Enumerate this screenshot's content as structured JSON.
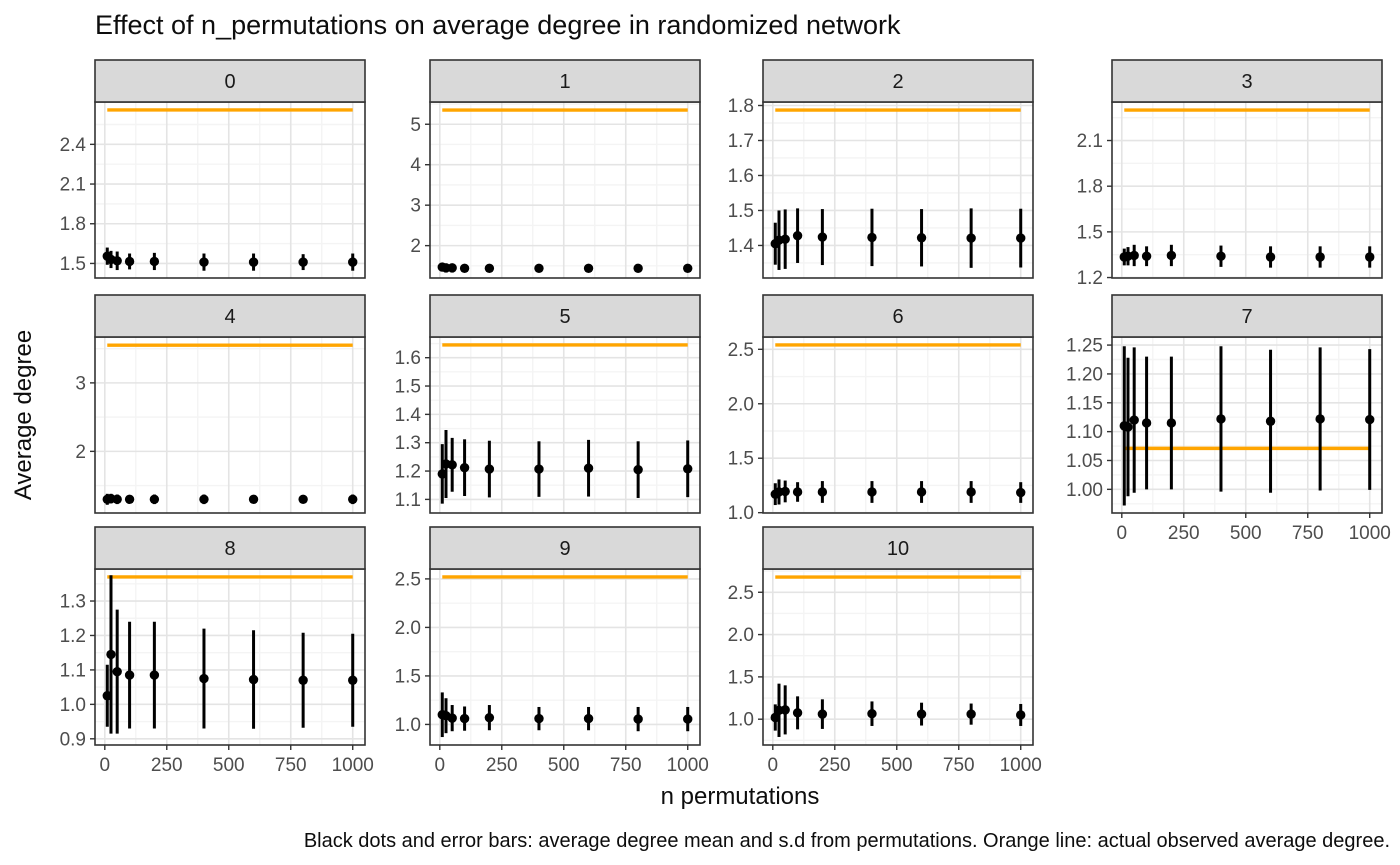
{
  "title": "Effect of n_permutations on average degree in randomized network",
  "caption": "Black dots and error bars: average degree mean and s.d from permutations. Orange line: actual observed average degree.",
  "xlabel": "n permutations",
  "ylabel": "Average degree",
  "colors": {
    "observed_line": "#FFA500",
    "point": "#000000",
    "strip_bg": "#D9D9D9",
    "border": "#333333",
    "grid_major": "#E4E4E4",
    "grid_minor": "#F4F4F4",
    "axis_text": "#4D4D4D",
    "strip_text": "#1A1A1A",
    "panel_bg": "#FFFFFF"
  },
  "chart_data": {
    "type": "scatter",
    "x": [
      10,
      25,
      50,
      100,
      200,
      400,
      600,
      800,
      1000
    ],
    "x_ticks": [
      0,
      250,
      500,
      750,
      1000
    ],
    "x_tick_labels": [
      "0",
      "250",
      "500",
      "750",
      "1000"
    ],
    "xlim": [
      -39.5,
      1049.5
    ],
    "observed_line_span": [
      10,
      1000
    ],
    "facets": [
      {
        "label": "0",
        "observed": 2.66,
        "ylim": [
          1.39,
          2.72
        ],
        "y_ticks": [
          1.5,
          1.8,
          2.1,
          2.4
        ],
        "y_tick_labels": [
          "1.5",
          "1.8",
          "2.1",
          "2.4"
        ],
        "mean": [
          1.555,
          1.53,
          1.52,
          1.515,
          1.515,
          1.51,
          1.51,
          1.51,
          1.51
        ],
        "sd": [
          0.065,
          0.065,
          0.07,
          0.06,
          0.065,
          0.065,
          0.065,
          0.06,
          0.065
        ]
      },
      {
        "label": "1",
        "observed": 5.35,
        "ylim": [
          1.2,
          5.55
        ],
        "y_ticks": [
          2,
          3,
          4,
          5
        ],
        "y_tick_labels": [
          "2",
          "3",
          "4",
          "5"
        ],
        "mean": [
          1.47,
          1.45,
          1.45,
          1.44,
          1.44,
          1.44,
          1.44,
          1.44,
          1.44
        ],
        "sd": [
          0.06,
          0.05,
          0.05,
          0.04,
          0.045,
          0.04,
          0.045,
          0.04,
          0.045
        ]
      },
      {
        "label": "2",
        "observed": 1.787,
        "ylim": [
          1.307,
          1.81
        ],
        "y_ticks": [
          1.4,
          1.5,
          1.6,
          1.7,
          1.8
        ],
        "y_tick_labels": [
          "1.4",
          "1.5",
          "1.6",
          "1.7",
          "1.8"
        ],
        "mean": [
          1.405,
          1.415,
          1.418,
          1.428,
          1.424,
          1.423,
          1.422,
          1.421,
          1.421
        ],
        "sd": [
          0.06,
          0.085,
          0.085,
          0.078,
          0.08,
          0.082,
          0.082,
          0.085,
          0.084
        ]
      },
      {
        "label": "3",
        "observed": 2.3,
        "ylim": [
          1.197,
          2.353
        ],
        "y_ticks": [
          1.2,
          1.5,
          1.8,
          2.1
        ],
        "y_tick_labels": [
          "1.2",
          "1.5",
          "1.8",
          "2.1"
        ],
        "mean": [
          1.335,
          1.34,
          1.345,
          1.34,
          1.345,
          1.34,
          1.335,
          1.335,
          1.335
        ],
        "sd": [
          0.055,
          0.06,
          0.07,
          0.065,
          0.07,
          0.07,
          0.07,
          0.07,
          0.07
        ]
      },
      {
        "label": "4",
        "observed": 3.55,
        "ylim": [
          1.1,
          3.67
        ],
        "y_ticks": [
          2,
          3
        ],
        "y_tick_labels": [
          "2",
          "3"
        ],
        "mean": [
          1.3,
          1.31,
          1.3,
          1.3,
          1.3,
          1.3,
          1.3,
          1.3,
          1.3
        ],
        "sd": [
          0.08,
          0.07,
          0.07,
          0.06,
          0.07,
          0.07,
          0.06,
          0.06,
          0.07
        ]
      },
      {
        "label": "5",
        "observed": 1.645,
        "ylim": [
          1.052,
          1.673
        ],
        "y_ticks": [
          1.1,
          1.2,
          1.3,
          1.4,
          1.5,
          1.6
        ],
        "y_tick_labels": [
          "1.1",
          "1.2",
          "1.3",
          "1.4",
          "1.5",
          "1.6"
        ],
        "mean": [
          1.19,
          1.225,
          1.222,
          1.212,
          1.207,
          1.207,
          1.21,
          1.205,
          1.208
        ],
        "sd": [
          0.105,
          0.12,
          0.095,
          0.1,
          0.1,
          0.098,
          0.1,
          0.1,
          0.1
        ]
      },
      {
        "label": "6",
        "observed": 2.54,
        "ylim": [
          0.997,
          2.613
        ],
        "y_ticks": [
          1.0,
          1.5,
          2.0,
          2.5
        ],
        "y_tick_labels": [
          "1.0",
          "1.5",
          "2.0",
          "2.5"
        ],
        "mean": [
          1.17,
          1.19,
          1.195,
          1.19,
          1.19,
          1.19,
          1.19,
          1.19,
          1.185
        ],
        "sd": [
          0.1,
          0.115,
          0.1,
          0.09,
          0.1,
          0.1,
          0.1,
          0.1,
          0.095
        ]
      },
      {
        "label": "7",
        "observed": 1.071,
        "ylim": [
          0.959,
          1.264
        ],
        "y_ticks": [
          1.0,
          1.05,
          1.1,
          1.15,
          1.2,
          1.25
        ],
        "y_tick_labels": [
          "1.00",
          "1.05",
          "1.10",
          "1.15",
          "1.20",
          "1.25"
        ],
        "mean": [
          1.11,
          1.108,
          1.12,
          1.115,
          1.115,
          1.122,
          1.118,
          1.122,
          1.121
        ],
        "sd": [
          0.138,
          0.12,
          0.126,
          0.115,
          0.115,
          0.126,
          0.124,
          0.124,
          0.122
        ]
      },
      {
        "label": "8",
        "observed": 1.37,
        "ylim": [
          0.882,
          1.393
        ],
        "y_ticks": [
          0.9,
          1.0,
          1.1,
          1.2,
          1.3
        ],
        "y_tick_labels": [
          "0.9",
          "1.0",
          "1.1",
          "1.2",
          "1.3"
        ],
        "mean": [
          1.025,
          1.145,
          1.095,
          1.085,
          1.085,
          1.075,
          1.072,
          1.07,
          1.07
        ],
        "sd": [
          0.09,
          0.23,
          0.18,
          0.155,
          0.155,
          0.145,
          0.143,
          0.138,
          0.135
        ]
      },
      {
        "label": "9",
        "observed": 2.52,
        "ylim": [
          0.788,
          2.602
        ],
        "y_ticks": [
          1.0,
          1.5,
          2.0,
          2.5
        ],
        "y_tick_labels": [
          "1.0",
          "1.5",
          "2.0",
          "2.5"
        ],
        "mean": [
          1.1,
          1.09,
          1.065,
          1.06,
          1.07,
          1.06,
          1.06,
          1.055,
          1.055
        ],
        "sd": [
          0.23,
          0.18,
          0.135,
          0.125,
          0.13,
          0.12,
          0.12,
          0.125,
          0.125
        ]
      },
      {
        "label": "10",
        "observed": 2.68,
        "ylim": [
          0.695,
          2.775
        ],
        "y_ticks": [
          1.0,
          1.5,
          2.0,
          2.5
        ],
        "y_tick_labels": [
          "1.0",
          "1.5",
          "2.0",
          "2.5"
        ],
        "mean": [
          1.02,
          1.105,
          1.11,
          1.075,
          1.06,
          1.065,
          1.06,
          1.06,
          1.05
        ],
        "sd": [
          0.155,
          0.315,
          0.29,
          0.195,
          0.175,
          0.145,
          0.135,
          0.125,
          0.13
        ]
      }
    ]
  }
}
